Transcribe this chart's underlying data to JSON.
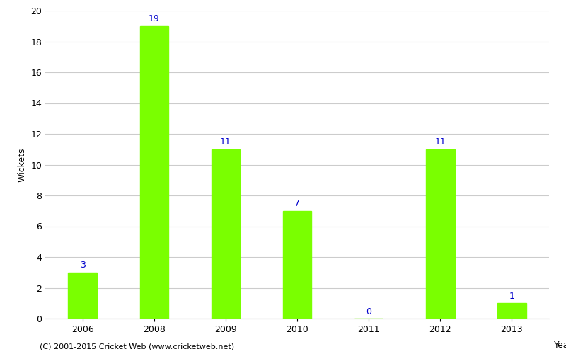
{
  "categories": [
    "2006",
    "2008",
    "2009",
    "2010",
    "2011",
    "2012",
    "2013"
  ],
  "values": [
    3,
    19,
    11,
    7,
    0,
    11,
    1
  ],
  "bar_color": "#7aff00",
  "label_color": "#0000cc",
  "ylabel": "Wickets",
  "xlabel": "Year",
  "ylim": [
    0,
    20
  ],
  "yticks": [
    0,
    2,
    4,
    6,
    8,
    10,
    12,
    14,
    16,
    18,
    20
  ],
  "footnote": "(C) 2001-2015 Cricket Web (www.cricketweb.net)",
  "background_color": "#ffffff",
  "grid_color": "#cccccc",
  "label_fontsize": 9,
  "axis_fontsize": 9,
  "bar_width": 0.4
}
